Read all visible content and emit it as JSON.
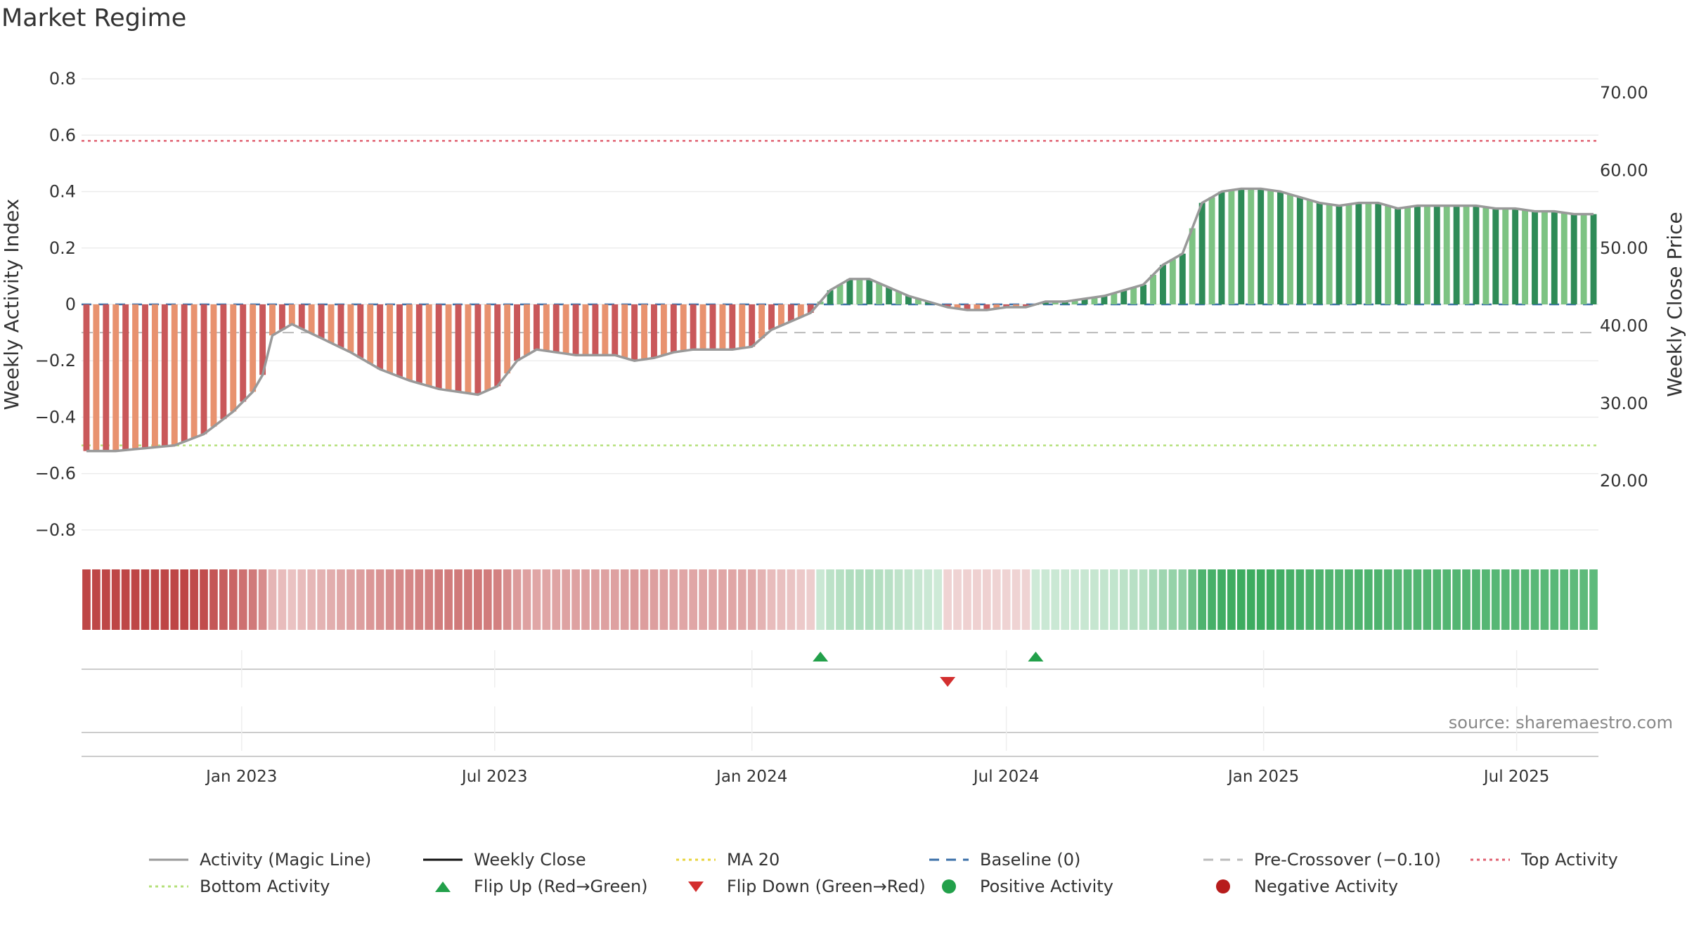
{
  "title": "Market Regime",
  "source": "source: sharemaestro.com",
  "colors": {
    "bar_pos_strong": "#2e8b57",
    "bar_pos_weak": "#7dc383",
    "bar_neg_strong": "#c9585a",
    "bar_neg_weak": "#e8926f",
    "magic_line": "#999999",
    "close_line": "#111111",
    "ma20": "#e8d43c",
    "baseline": "#3a6fa8",
    "pre_crossover": "#bbbbbb",
    "top_activity": "#e06070",
    "bottom_activity": "#b5e07a",
    "flip_up": "#22a04a",
    "flip_down": "#d32f2f",
    "positive": "#22a04a",
    "negative": "#b71c1c"
  },
  "chart_data": {
    "type": "bar",
    "x_start": "2022-09-12",
    "week_count": 155,
    "xticks": [
      {
        "date": "2023-01-01",
        "label": "Jan 2023"
      },
      {
        "date": "2023-07-01",
        "label": "Jul 2023"
      },
      {
        "date": "2024-01-01",
        "label": "Jan 2024"
      },
      {
        "date": "2024-07-01",
        "label": "Jul 2024"
      },
      {
        "date": "2025-01-01",
        "label": "Jan 2025"
      },
      {
        "date": "2025-07-01",
        "label": "Jul 2025"
      }
    ],
    "y_left": {
      "label": "Weekly Activity Index",
      "lim": [
        -0.86,
        0.86
      ],
      "ticks": [
        0.8,
        0.6,
        0.4,
        0.2,
        0,
        -0.2,
        -0.4,
        -0.6,
        -0.8
      ],
      "tick_labels": [
        "0.8",
        "0.6",
        "0.4",
        "0.2",
        "0",
        "−0.2",
        "−0.4",
        "−0.6",
        "−0.8"
      ]
    },
    "y_right": {
      "label": "Weekly Close Price",
      "lim": [
        11.5,
        74.0
      ],
      "ticks": [
        70,
        60,
        50,
        40,
        30,
        20
      ],
      "tick_labels": [
        "70.00",
        "60.00",
        "50.00",
        "40.00",
        "30.00",
        "20.00"
      ]
    },
    "grid": true,
    "reference_lines": [
      {
        "name": "Top Activity",
        "value": 0.58
      },
      {
        "name": "Pre-Crossover (−0.10)",
        "value": -0.1
      },
      {
        "name": "Bottom Activity",
        "value": -0.5
      },
      {
        "name": "Baseline (0)",
        "value": 0
      }
    ],
    "activity_points": [
      {
        "week": 0,
        "value": -0.52
      },
      {
        "week": 3,
        "value": -0.52
      },
      {
        "week": 6,
        "value": -0.51
      },
      {
        "week": 9,
        "value": -0.5
      },
      {
        "week": 12,
        "value": -0.46
      },
      {
        "week": 15,
        "value": -0.38
      },
      {
        "week": 17,
        "value": -0.31
      },
      {
        "week": 18,
        "value": -0.25
      },
      {
        "week": 19,
        "value": -0.11
      },
      {
        "week": 21,
        "value": -0.07
      },
      {
        "week": 24,
        "value": -0.12
      },
      {
        "week": 27,
        "value": -0.17
      },
      {
        "week": 30,
        "value": -0.23
      },
      {
        "week": 33,
        "value": -0.27
      },
      {
        "week": 36,
        "value": -0.3
      },
      {
        "week": 38,
        "value": -0.31
      },
      {
        "week": 40,
        "value": -0.32
      },
      {
        "week": 42,
        "value": -0.29
      },
      {
        "week": 44,
        "value": -0.2
      },
      {
        "week": 46,
        "value": -0.16
      },
      {
        "week": 48,
        "value": -0.17
      },
      {
        "week": 50,
        "value": -0.18
      },
      {
        "week": 52,
        "value": -0.18
      },
      {
        "week": 54,
        "value": -0.18
      },
      {
        "week": 56,
        "value": -0.2
      },
      {
        "week": 58,
        "value": -0.19
      },
      {
        "week": 60,
        "value": -0.17
      },
      {
        "week": 62,
        "value": -0.16
      },
      {
        "week": 64,
        "value": -0.16
      },
      {
        "week": 66,
        "value": -0.16
      },
      {
        "week": 68,
        "value": -0.15
      },
      {
        "week": 70,
        "value": -0.09
      },
      {
        "week": 72,
        "value": -0.06
      },
      {
        "week": 74,
        "value": -0.03
      },
      {
        "week": 76,
        "value": 0.05
      },
      {
        "week": 78,
        "value": 0.09
      },
      {
        "week": 80,
        "value": 0.09
      },
      {
        "week": 82,
        "value": 0.06
      },
      {
        "week": 84,
        "value": 0.03
      },
      {
        "week": 86,
        "value": 0.01
      },
      {
        "week": 88,
        "value": -0.01
      },
      {
        "week": 90,
        "value": -0.02
      },
      {
        "week": 92,
        "value": -0.02
      },
      {
        "week": 94,
        "value": -0.01
      },
      {
        "week": 96,
        "value": -0.01
      },
      {
        "week": 98,
        "value": 0.01
      },
      {
        "week": 100,
        "value": 0.01
      },
      {
        "week": 102,
        "value": 0.02
      },
      {
        "week": 104,
        "value": 0.03
      },
      {
        "week": 106,
        "value": 0.05
      },
      {
        "week": 108,
        "value": 0.07
      },
      {
        "week": 110,
        "value": 0.14
      },
      {
        "week": 112,
        "value": 0.18
      },
      {
        "week": 114,
        "value": 0.36
      },
      {
        "week": 116,
        "value": 0.4
      },
      {
        "week": 118,
        "value": 0.41
      },
      {
        "week": 120,
        "value": 0.41
      },
      {
        "week": 122,
        "value": 0.4
      },
      {
        "week": 124,
        "value": 0.38
      },
      {
        "week": 126,
        "value": 0.36
      },
      {
        "week": 128,
        "value": 0.35
      },
      {
        "week": 130,
        "value": 0.36
      },
      {
        "week": 132,
        "value": 0.36
      },
      {
        "week": 134,
        "value": 0.34
      },
      {
        "week": 136,
        "value": 0.35
      },
      {
        "week": 138,
        "value": 0.35
      },
      {
        "week": 140,
        "value": 0.35
      },
      {
        "week": 142,
        "value": 0.35
      },
      {
        "week": 144,
        "value": 0.34
      },
      {
        "week": 146,
        "value": 0.34
      },
      {
        "week": 148,
        "value": 0.33
      },
      {
        "week": 150,
        "value": 0.33
      },
      {
        "week": 152,
        "value": 0.32
      },
      {
        "week": 154,
        "value": 0.32
      }
    ],
    "series": [
      {
        "name": "Activity (Magic Line)",
        "type": "line"
      },
      {
        "name": "Weekly Close",
        "type": "line"
      },
      {
        "name": "MA 20",
        "type": "line"
      }
    ]
  },
  "legend": [
    {
      "label": "Activity (Magic Line)",
      "symbol": "line",
      "color": "#999999",
      "dash": "none"
    },
    {
      "label": "Weekly Close",
      "symbol": "line",
      "color": "#111111",
      "dash": "none"
    },
    {
      "label": "MA 20",
      "symbol": "line",
      "color": "#e8d43c",
      "dash": "dotted"
    },
    {
      "label": "Baseline (0)",
      "symbol": "line",
      "color": "#3a6fa8",
      "dash": "dashed"
    },
    {
      "label": "Pre-Crossover (−0.10)",
      "symbol": "line",
      "color": "#bbbbbb",
      "dash": "dashed"
    },
    {
      "label": "Top Activity",
      "symbol": "line",
      "color": "#e06070",
      "dash": "dotted"
    },
    {
      "label": "Bottom Activity",
      "symbol": "line",
      "color": "#b5e07a",
      "dash": "dotted"
    },
    {
      "label": "Flip Up (Red→Green)",
      "symbol": "triangle-up",
      "color": "#22a04a"
    },
    {
      "label": "Flip Down (Green→Red)",
      "symbol": "triangle-down",
      "color": "#d32f2f"
    },
    {
      "label": "Positive Activity",
      "symbol": "circle",
      "color": "#22a04a"
    },
    {
      "label": "Negative Activity",
      "symbol": "circle",
      "color": "#b71c1c"
    }
  ]
}
